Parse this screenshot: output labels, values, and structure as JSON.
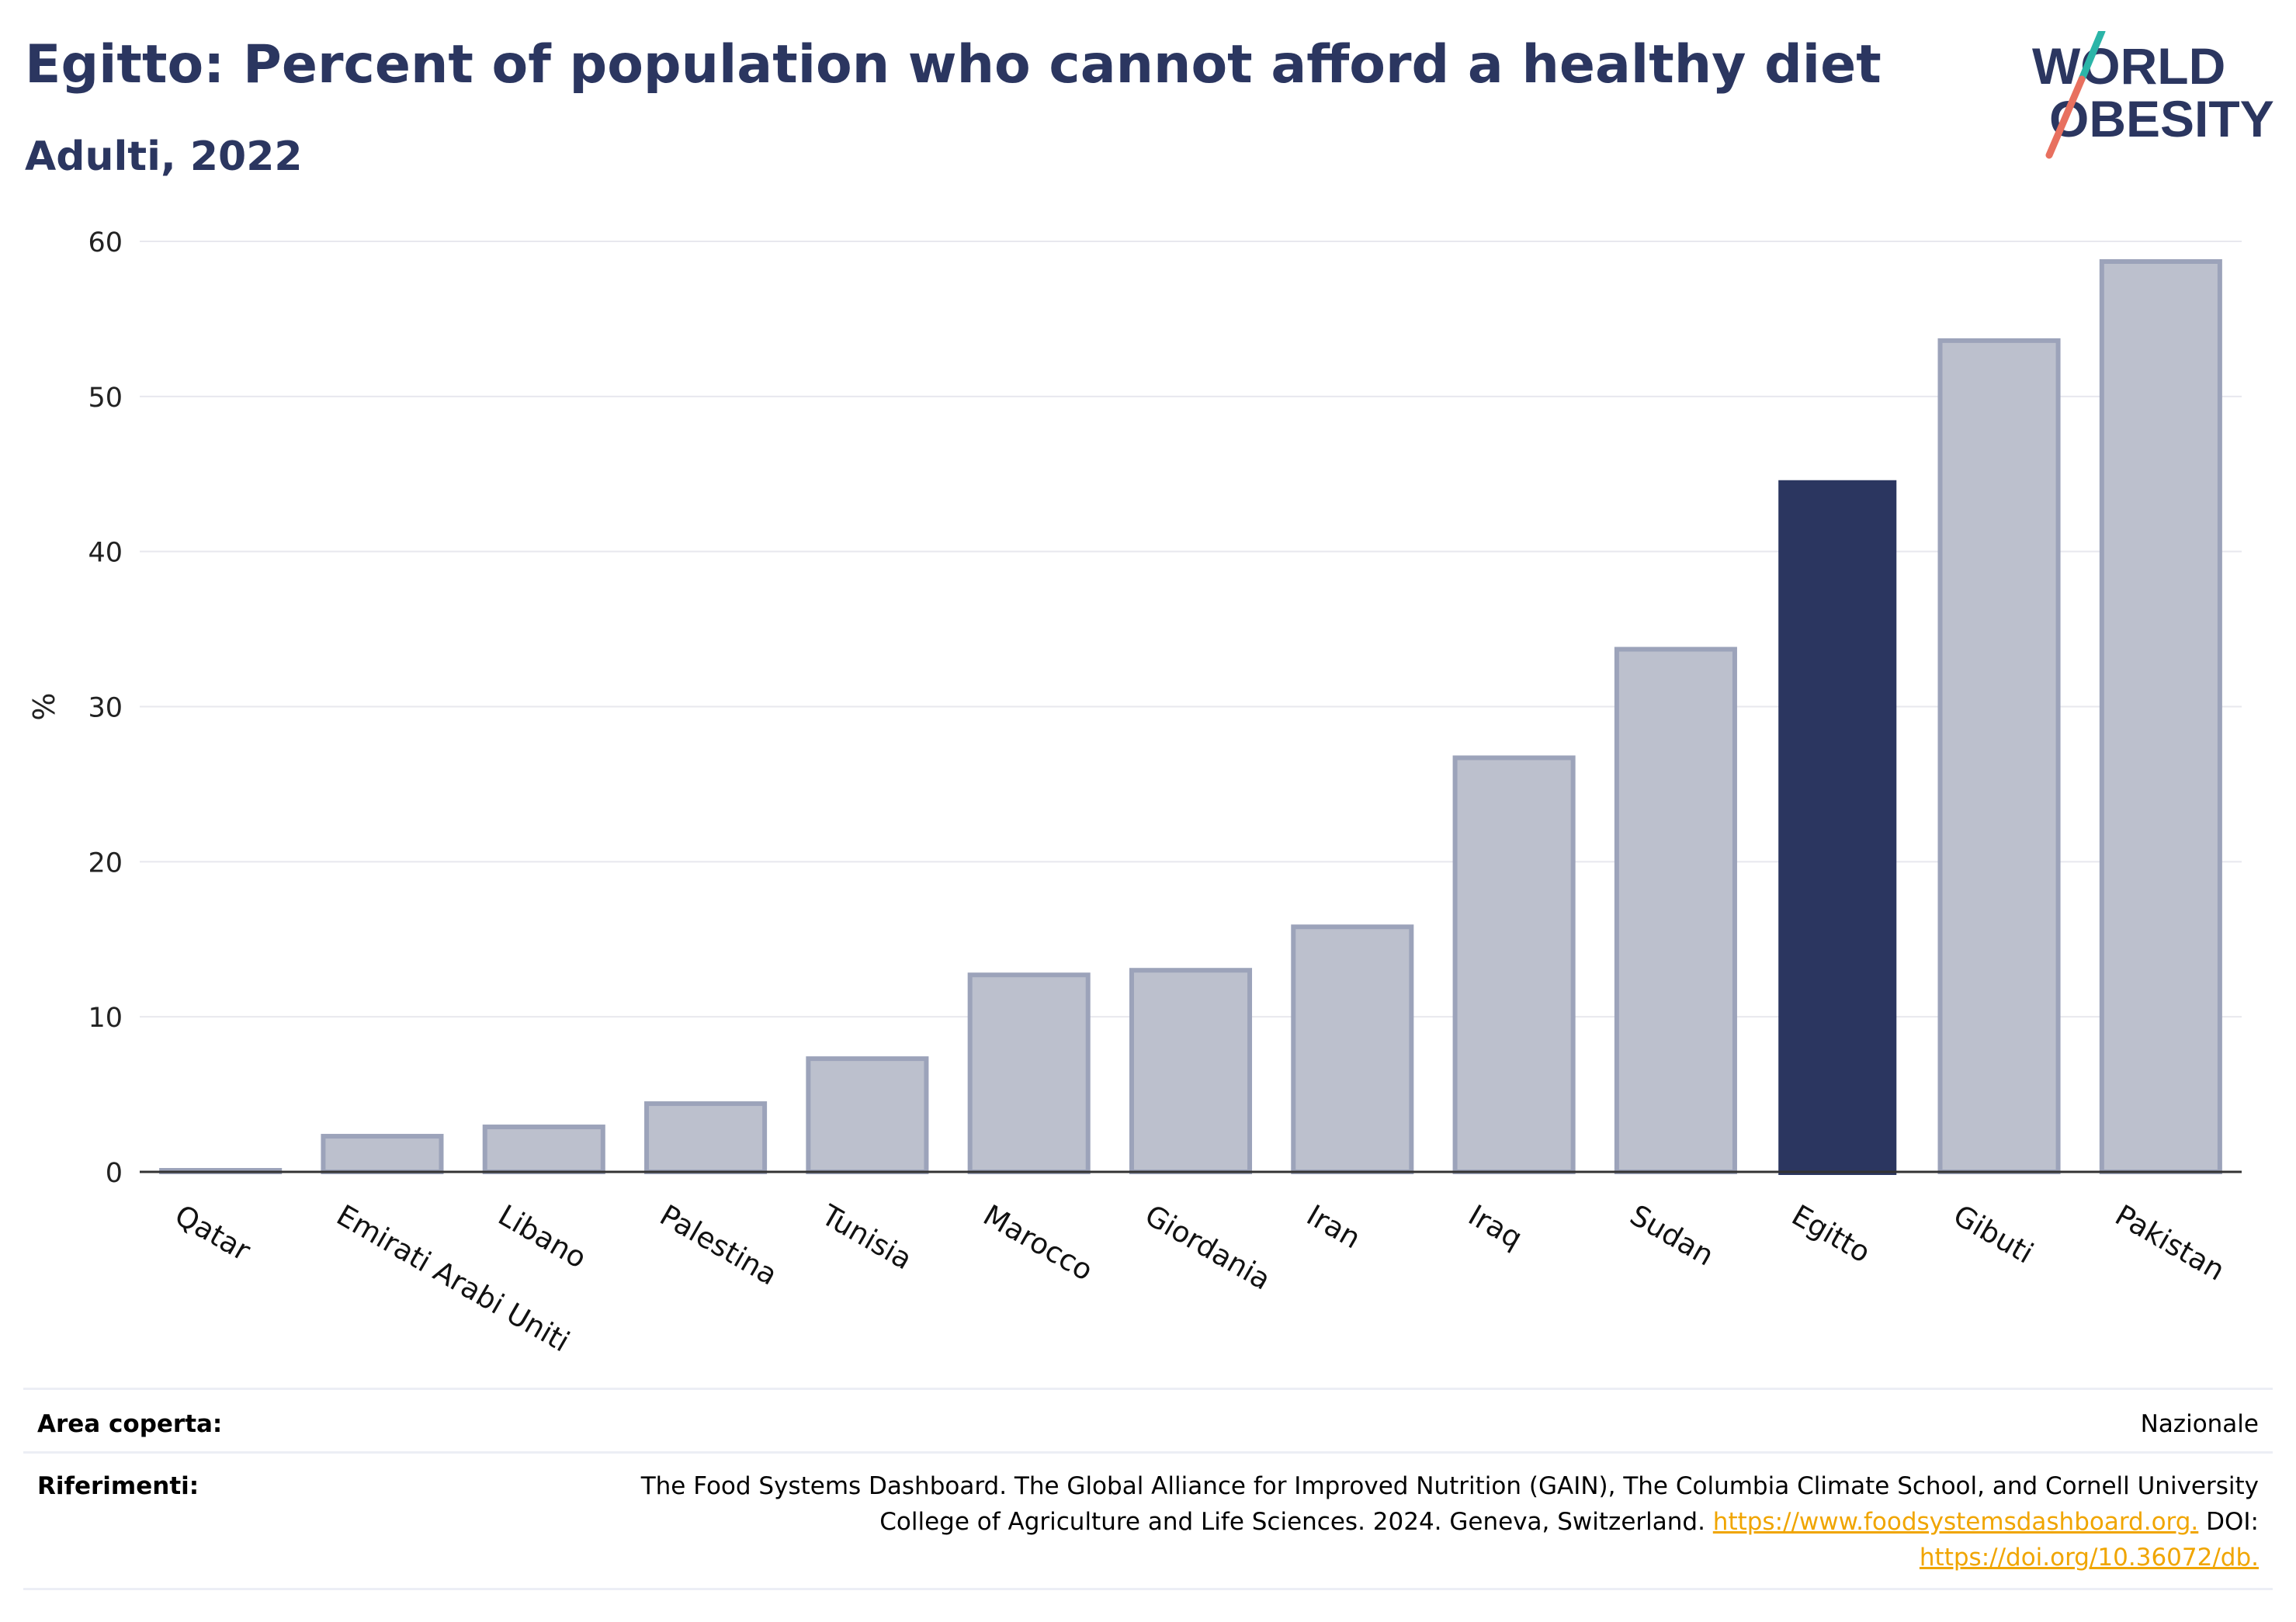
{
  "header": {
    "title": "Egitto: Percent of population who cannot afford a healthy diet",
    "subtitle": "Adulti, 2022"
  },
  "logo": {
    "line1": "WORLD",
    "line2": "OBESITY"
  },
  "chart_data": {
    "type": "bar",
    "categories": [
      "Qatar",
      "Emirati Arabi Uniti",
      "Libano",
      "Palestina",
      "Tunisia",
      "Marocco",
      "Giordania",
      "Iran",
      "Iraq",
      "Sudan",
      "Egitto",
      "Gibuti",
      "Pakistan"
    ],
    "values": [
      0.1,
      2.3,
      2.9,
      4.4,
      7.3,
      12.7,
      13.0,
      15.8,
      26.7,
      33.7,
      44.6,
      53.6,
      58.7
    ],
    "highlight": "Egitto",
    "ylabel": "%",
    "ylim": [
      0,
      60
    ],
    "yticks": [
      0,
      10,
      20,
      30,
      40,
      50,
      60
    ],
    "grid": true,
    "colors": {
      "bar": "#bcc0cd",
      "bar_border": "#9ca3ba",
      "highlight": "#2b3660",
      "grid": "#e8e8ee",
      "axis": "#333333"
    }
  },
  "footer": {
    "area_label": "Area coperta:",
    "area_value": "Nazionale",
    "ref_label": "Riferimenti:",
    "ref_line1": "The Food Systems Dashboard. The Global Alliance for Improved Nutrition (GAIN), The Columbia Climate School, and Cornell University",
    "ref_line2": "College of Agriculture and Life Sciences. 2024. Geneva, Switzerland.",
    "ref_link1": "https://www.foodsystemsdashboard.org.",
    "ref_doi": "DOI:",
    "ref_link2": "https://doi.org/10.36072/db."
  }
}
